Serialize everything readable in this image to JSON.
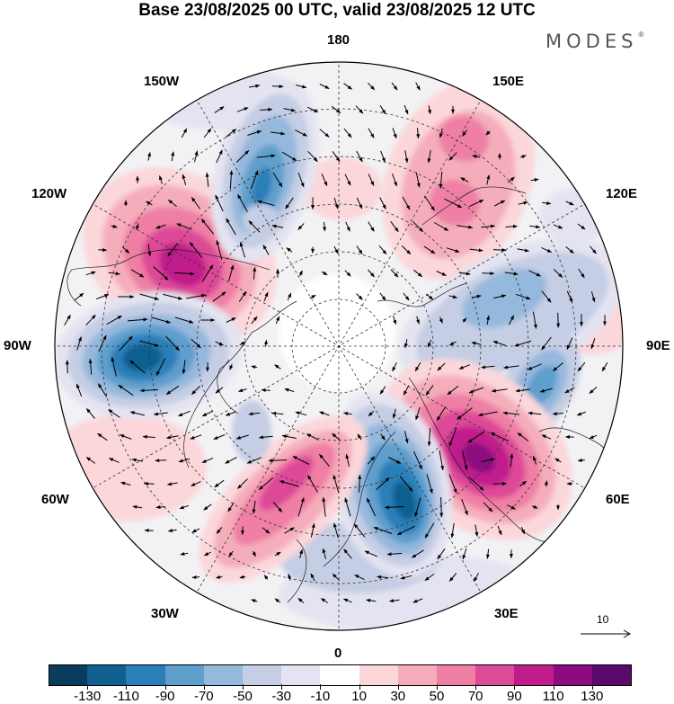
{
  "title": "Base 23/08/2025 00 UTC, valid 23/08/2025 12 UTC",
  "brand": "MODES",
  "brand_mark": "®",
  "map_labels": {
    "lon_180": "180",
    "lon_150w": "150W",
    "lon_150e": "150E",
    "lon_120w": "120W",
    "lon_120e": "120E",
    "lon_90w": "90W",
    "lon_90e": "90E",
    "lon_60w": "60W",
    "lon_60e": "60E",
    "lon_30w": "30W",
    "lon_30e": "30E",
    "lon_0": "0"
  },
  "reference_vector": {
    "label": "10"
  },
  "colorbar": {
    "colors": [
      "#0b3c5d",
      "#105f8f",
      "#2b7fb8",
      "#5e9fcd",
      "#95b8dd",
      "#c5cee4",
      "#e4e3f1",
      "#ffffff",
      "#fbd7da",
      "#f5adbb",
      "#ef7fa5",
      "#dd4a97",
      "#c01d8b",
      "#8c0b7f",
      "#5a0a6b"
    ],
    "labels": [
      "-130",
      "-110",
      "-90",
      "-70",
      "-50",
      "-30",
      "-10",
      "10",
      "30",
      "50",
      "70",
      "90",
      "110",
      "130"
    ]
  }
}
